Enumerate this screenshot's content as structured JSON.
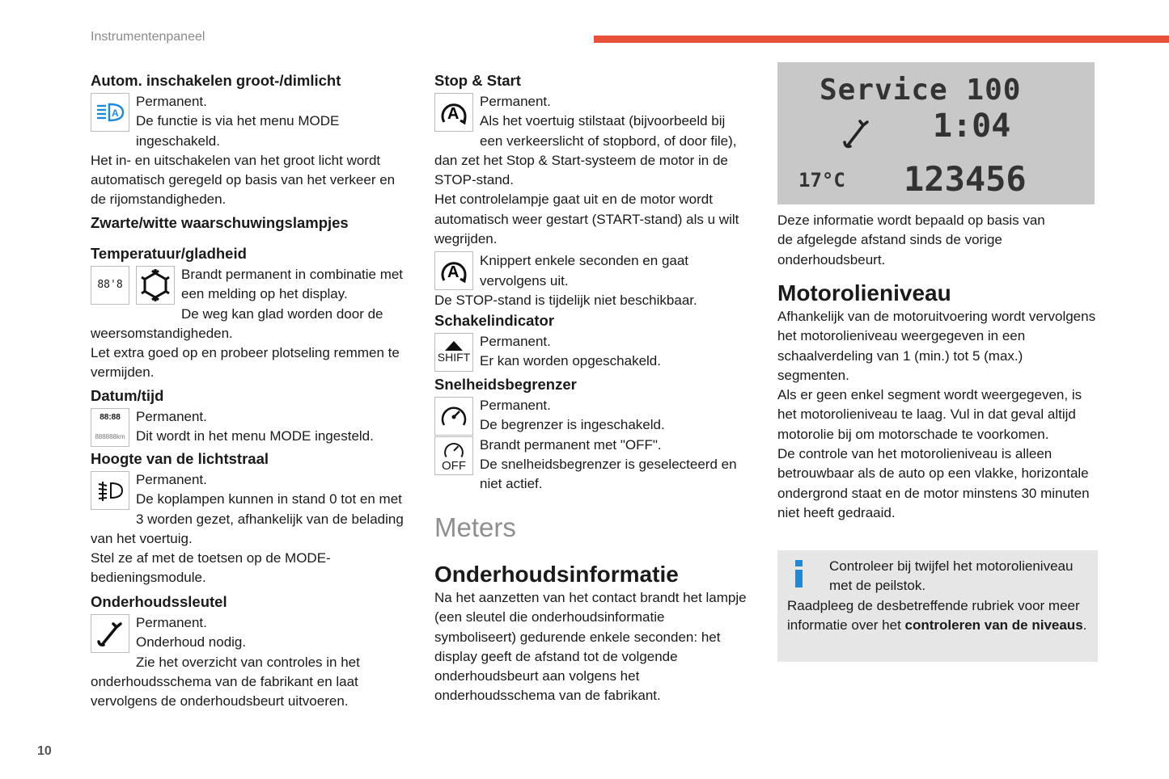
{
  "header": {
    "section": "Instrumentenpaneel",
    "page_number": "10",
    "accent_color": "#e8503a"
  },
  "col1": {
    "s1": {
      "title": "Autom. inschakelen groot-/dimlicht",
      "icon": "auto-high-beam-icon",
      "text": [
        "Permanent.",
        "De functie is via het menu MODE ingeschakeld.",
        "Het in- en uitschakelen van het groot licht wordt automatisch geregeld op basis van het verkeer en de rijomstandigheden."
      ]
    },
    "s2": {
      "title": "Zwarte/witte waarschuwingslampjes"
    },
    "s3": {
      "title": "Temperatuur/gladheid",
      "icon_text": "88'8",
      "text": [
        "Brandt permanent in combinatie met een melding op het display.",
        "De weg kan glad worden door de weersomstandigheden.",
        "Let extra goed op en probeer plotseling remmen te vermijden."
      ]
    },
    "s4": {
      "title": "Datum/tijd",
      "icon_text1": "88:88",
      "icon_text2": "888888km",
      "text": [
        "Permanent.",
        "Dit wordt in het menu MODE ingesteld."
      ]
    },
    "s5": {
      "title": "Hoogte van de lichtstraal",
      "text": [
        "Permanent.",
        "De koplampen kunnen in stand 0 tot en met 3 worden gezet, afhankelijk van de belading van het voertuig.",
        "Stel ze af met de toetsen op de MODE-bedieningsmodule."
      ]
    },
    "s6": {
      "title": "Onderhoudssleutel",
      "text": [
        "Permanent.",
        "Onderhoud nodig.",
        "Zie het overzicht van controles in het onderhoudsschema van de fabrikant en laat vervolgens de onderhoudsbeurt uitvoeren."
      ]
    }
  },
  "col2": {
    "s1": {
      "title": "Stop & Start",
      "text": [
        "Permanent.",
        "Als het voertuig stilstaat (bijvoorbeeld bij een verkeerslicht of stopbord, of door file), dan zet het Stop & Start-systeem de motor in de STOP-stand.",
        "Het controlelampje gaat uit en de motor wordt automatisch weer gestart (START-stand) als u wilt wegrijden."
      ],
      "text2": [
        "Knippert enkele seconden en gaat vervolgens uit.",
        "De STOP-stand is tijdelijk niet beschikbaar."
      ]
    },
    "s2": {
      "title": "Schakelindicator",
      "icon_text": "SHIFT",
      "text": [
        "Permanent.",
        "Er kan worden opgeschakeld."
      ]
    },
    "s3": {
      "title": "Snelheidsbegrenzer",
      "icon_off": "OFF",
      "text": [
        "Permanent.",
        "De begrenzer is ingeschakeld.",
        "Brandt permanent met \"OFF\".",
        "De snelheidsbegrenzer is geselecteerd en niet actief."
      ]
    },
    "meters": "Meters",
    "s4": {
      "title": "Onderhoudsinformatie",
      "text": "Na het aanzetten van het contact brandt het lampje (een sleutel die onderhoudsinformatie symboliseert) gedurende enkele seconden: het display geeft de afstand tot de volgende onderhoudsbeurt aan volgens het onderhoudsschema van de fabrikant."
    }
  },
  "col3": {
    "lcd": {
      "line1": "Service 100",
      "time": "1:04",
      "temp": "17°C",
      "odometer": "123456"
    },
    "caption": "Deze informatie wordt bepaald op basis van de afgelegde afstand sinds de vorige onderhoudsbeurt.",
    "title": "Motorolieniveau",
    "text": [
      "Afhankelijk van de motoruitvoering wordt vervolgens het motorolieniveau weergegeven in een schaalverdeling van 1 (min.) tot 5 (max.) segmenten.",
      "Als er geen enkel segment wordt weergegeven, is het motorolieniveau te laag. Vul in dat geval altijd motorolie bij om motorschade te voorkomen.",
      "De controle van het motorolieniveau is alleen betrouwbaar als de auto op een vlakke, horizontale ondergrond staat en de motor minstens 30 minuten niet heeft gedraaid."
    ],
    "info": {
      "line1": "Controleer bij twijfel het motorolieniveau met de peilstok.",
      "line2_pre": "Raadpleeg de desbetreffende rubriek voor meer informatie over het ",
      "line2_bold": "controleren van de niveaus",
      "line2_post": ".",
      "icon_color": "#1e8ad6"
    }
  }
}
